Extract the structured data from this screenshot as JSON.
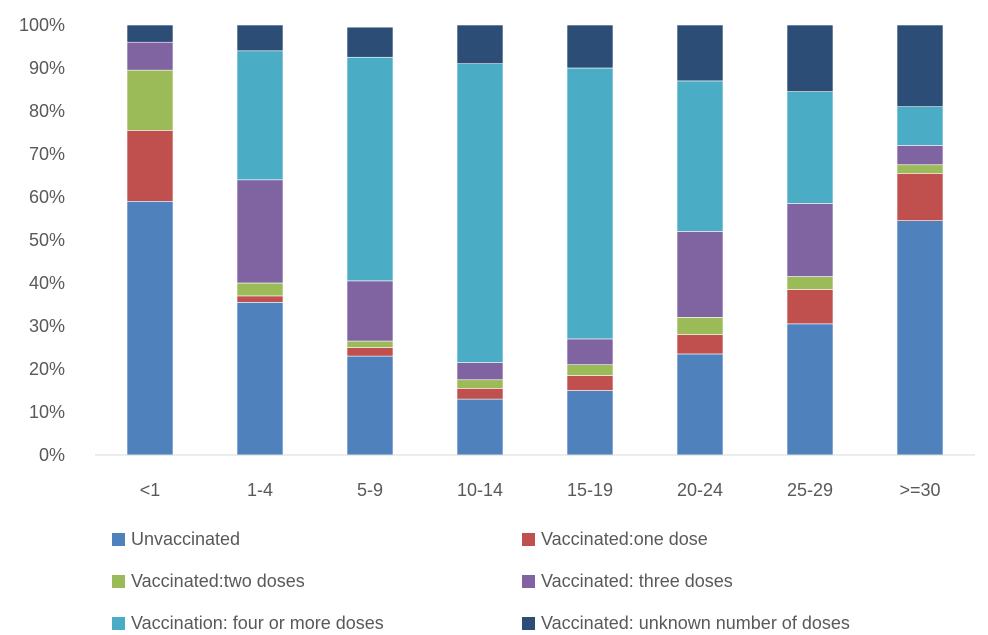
{
  "chart_data": {
    "type": "bar",
    "stacked": true,
    "percent": true,
    "categories": [
      "<1",
      "1-4",
      "5-9",
      "10-14",
      "15-19",
      "20-24",
      "25-29",
      ">=30"
    ],
    "ylim": [
      0,
      100
    ],
    "yticks": [
      "0%",
      "10%",
      "20%",
      "30%",
      "40%",
      "50%",
      "60%",
      "70%",
      "80%",
      "90%",
      "100%"
    ],
    "grid": false,
    "legend_position": "bottom",
    "series": [
      {
        "name": "Unvaccinated",
        "color": "#4F81BD",
        "values": [
          59,
          35.5,
          23,
          13,
          15,
          23.5,
          30.5,
          54.5
        ]
      },
      {
        "name": "Vaccinated:one dose",
        "color": "#C0504D",
        "values": [
          16.5,
          1.5,
          2,
          2.5,
          3.5,
          4.5,
          8,
          11
        ]
      },
      {
        "name": "Vaccinated:two doses",
        "color": "#9BBB59",
        "values": [
          14,
          3,
          1.5,
          2,
          2.5,
          4,
          3,
          2
        ]
      },
      {
        "name": "Vaccinated: three doses",
        "color": "#8064A2",
        "values": [
          6.5,
          24,
          14,
          4,
          6,
          20,
          17,
          4.5
        ]
      },
      {
        "name": "Vaccination: four or more doses",
        "color": "#4BACC6",
        "values": [
          0,
          30,
          52,
          69.5,
          63,
          35,
          26,
          9
        ]
      },
      {
        "name": "Vaccinated: unknown number of doses",
        "color": "#2C4D75",
        "values": [
          4,
          6,
          7,
          9,
          10,
          13,
          15.5,
          19
        ]
      }
    ]
  }
}
